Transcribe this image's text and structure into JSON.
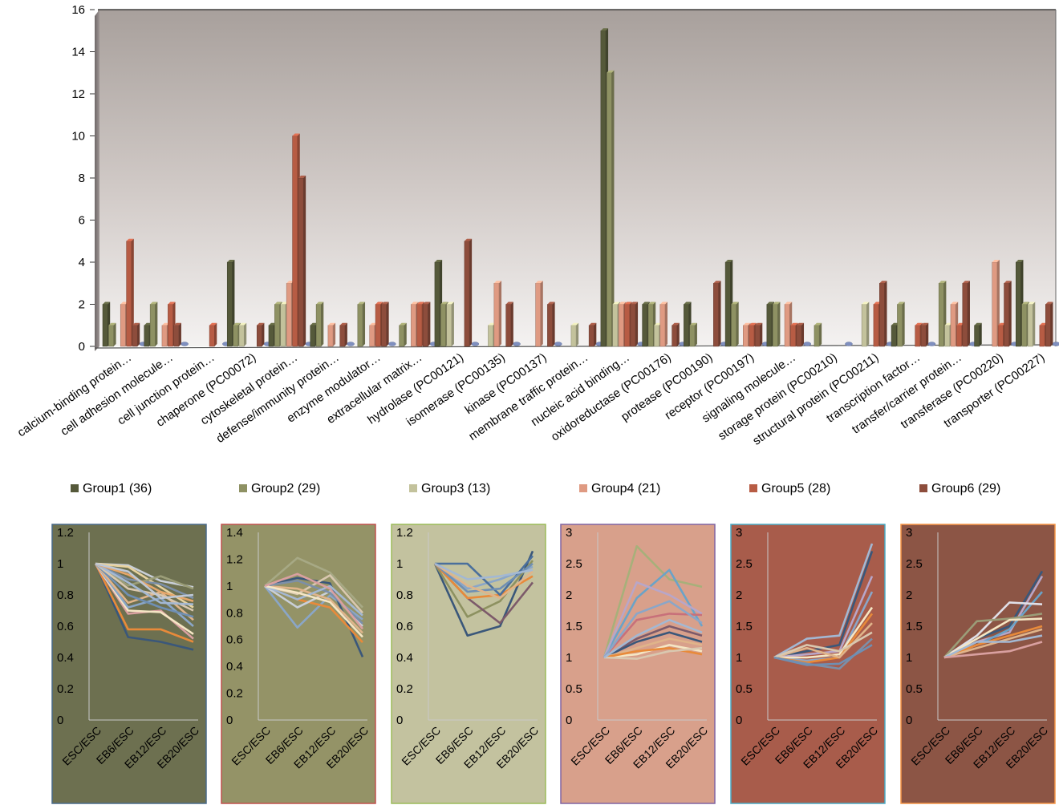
{
  "chart_data": [
    {
      "type": "bar",
      "title": "",
      "xlabel": "",
      "ylabel": "",
      "ylim": [
        0,
        16
      ],
      "yticks": [
        "0",
        "2",
        "4",
        "6",
        "8",
        "10",
        "12",
        "14",
        "16"
      ],
      "grid": false,
      "legend_position": "bottom",
      "categories": [
        "calcium-binding protein…",
        "cell adhesion molecule…",
        "cell junction protein…",
        "chaperone (PC00072)",
        "cytoskeletal protein…",
        "defense/immunity protein…",
        "enzyme modulator…",
        "extracellular matrix…",
        "hydrolase (PC00121)",
        "isomerase (PC00135)",
        "kinase (PC00137)",
        "membrane traffic protein…",
        "nucleic acid binding…",
        "oxidoreductase (PC00176)",
        "protease (PC00190)",
        "receptor (PC00197)",
        "signaling molecule…",
        "storage protein (PC00210)",
        "structural protein (PC00211)",
        "transcription factor…",
        "transfer/carrier protein…",
        "transferase (PC00220)",
        "transporter (PC00227)"
      ],
      "series": [
        {
          "name": "Group1 (36)",
          "color": "#55593a",
          "values": [
            2,
            1,
            0,
            4,
            1,
            1,
            0,
            0,
            4,
            0,
            0,
            0,
            15,
            2,
            2,
            4,
            2,
            0,
            0,
            1,
            0,
            1,
            4
          ]
        },
        {
          "name": "Group2 (29)",
          "color": "#8e9163",
          "values": [
            1,
            2,
            0,
            1,
            2,
            2,
            2,
            1,
            2,
            0,
            0,
            0,
            13,
            2,
            1,
            2,
            2,
            1,
            0,
            2,
            3,
            0,
            2
          ]
        },
        {
          "name": "Group3 (13)",
          "color": "#c3c29c",
          "values": [
            0,
            0,
            0,
            1,
            2,
            0,
            0,
            0,
            2,
            1,
            0,
            1,
            2,
            1,
            0,
            0,
            0,
            0,
            2,
            0,
            1,
            0,
            2
          ]
        },
        {
          "name": "Group4 (21)",
          "color": "#df9a82",
          "values": [
            2,
            1,
            0,
            0,
            3,
            1,
            1,
            2,
            0,
            3,
            3,
            0,
            2,
            2,
            0,
            1,
            2,
            0,
            0,
            0,
            2,
            4,
            0
          ]
        },
        {
          "name": "Group5 (28)",
          "color": "#b75c44",
          "values": [
            5,
            2,
            1,
            0,
            10,
            0,
            2,
            2,
            0,
            0,
            0,
            0,
            2,
            0,
            0,
            1,
            1,
            0,
            2,
            1,
            1,
            1,
            1
          ]
        },
        {
          "name": "Group6 (29)",
          "color": "#8d4d3c",
          "values": [
            1,
            1,
            0,
            1,
            8,
            1,
            2,
            2,
            5,
            2,
            2,
            1,
            2,
            1,
            3,
            1,
            1,
            0,
            3,
            1,
            3,
            3,
            2
          ]
        }
      ]
    },
    {
      "type": "line",
      "group": "Group1 (36)",
      "background": "#6d7050",
      "border": "#4a6b8a",
      "categories": [
        "ESC/ESC",
        "EB6/ESC",
        "EB12/ESC",
        "EB20/ESC"
      ],
      "ylim": [
        0,
        1.2
      ],
      "yticks": [
        "0",
        "0.2",
        "0.4",
        "0.6",
        "0.8",
        "1",
        "1.2"
      ],
      "series": [
        {
          "color": "#c9cfd8",
          "values": [
            1,
            0.99,
            0.89,
            0.85
          ]
        },
        {
          "color": "#e8d3a0",
          "values": [
            1,
            0.98,
            0.85,
            0.72
          ]
        },
        {
          "color": "#7c8fa8",
          "values": [
            1,
            0.9,
            0.87,
            0.78
          ]
        },
        {
          "color": "#9b9d78",
          "values": [
            1,
            0.86,
            0.92,
            0.84
          ]
        },
        {
          "color": "#3a577a",
          "values": [
            1,
            0.53,
            0.5,
            0.45
          ]
        },
        {
          "color": "#e88a3a",
          "values": [
            1,
            0.58,
            0.58,
            0.5
          ]
        },
        {
          "color": "#d9a0a0",
          "values": [
            1,
            0.68,
            0.7,
            0.52
          ]
        },
        {
          "color": "#f5e6c4",
          "values": [
            1,
            0.7,
            0.69,
            0.55
          ]
        },
        {
          "color": "#8aa6c8",
          "values": [
            1,
            0.72,
            0.78,
            0.6
          ]
        },
        {
          "color": "#e0b48a",
          "values": [
            1,
            0.75,
            0.82,
            0.64
          ]
        },
        {
          "color": "#6f8fb3",
          "values": [
            1,
            0.8,
            0.72,
            0.66
          ]
        },
        {
          "color": "#d9c8b0",
          "values": [
            1,
            0.84,
            0.8,
            0.7
          ]
        },
        {
          "color": "#a3b8d3",
          "values": [
            1,
            0.88,
            0.75,
            0.74
          ]
        },
        {
          "color": "#e6a66a",
          "values": [
            1,
            0.93,
            0.82,
            0.76
          ]
        },
        {
          "color": "#bfc8d6",
          "values": [
            1,
            0.95,
            0.78,
            0.8
          ]
        }
      ]
    },
    {
      "type": "line",
      "group": "Group2 (29)",
      "background": "#949367",
      "border": "#c0504d",
      "categories": [
        "ESC/ESC",
        "EB6/ESC",
        "EB12/ESC",
        "EB20/ESC"
      ],
      "ylim": [
        0,
        1.4
      ],
      "yticks": [
        "0",
        "0.2",
        "0.4",
        "0.6",
        "0.8",
        "1",
        "1.2",
        "1.4"
      ],
      "series": [
        {
          "color": "#a7a985",
          "values": [
            1,
            1.21,
            1.1,
            0.84
          ]
        },
        {
          "color": "#8aa6c8",
          "values": [
            1,
            0.69,
            0.93,
            0.75
          ]
        },
        {
          "color": "#3a577a",
          "values": [
            1,
            1.06,
            1.02,
            0.47
          ]
        },
        {
          "color": "#e88a3a",
          "values": [
            1,
            0.9,
            0.84,
            0.58
          ]
        },
        {
          "color": "#d9c8b0",
          "values": [
            1,
            0.94,
            1.08,
            0.8
          ]
        },
        {
          "color": "#c9cfd8",
          "values": [
            1,
            0.84,
            0.96,
            0.7
          ]
        },
        {
          "color": "#e0b48a",
          "values": [
            1,
            0.98,
            0.9,
            0.65
          ]
        },
        {
          "color": "#7c8fa8",
          "values": [
            1,
            1.04,
            0.95,
            0.72
          ]
        },
        {
          "color": "#a3b8d3",
          "values": [
            1,
            0.9,
            1.0,
            0.78
          ]
        },
        {
          "color": "#f5e6c4",
          "values": [
            1,
            0.95,
            0.88,
            0.62
          ]
        },
        {
          "color": "#d9a0a0",
          "values": [
            1,
            1.09,
            0.98,
            0.68
          ]
        }
      ]
    },
    {
      "type": "line",
      "group": "Group3 (13)",
      "background": "#c3c29f",
      "border": "#9bbb59",
      "categories": [
        "ESC/ESC",
        "EB6/ESC",
        "EB12/ESC",
        "EB20/ESC"
      ],
      "ylim": [
        0,
        1.2
      ],
      "yticks": [
        "0",
        "0.2",
        "0.4",
        "0.6",
        "0.8",
        "1",
        "1.2"
      ],
      "series": [
        {
          "color": "#3a577a",
          "values": [
            1,
            0.54,
            0.6,
            1.08
          ]
        },
        {
          "color": "#8d9160",
          "values": [
            1,
            0.66,
            0.76,
            1.02
          ]
        },
        {
          "color": "#7c5a6a",
          "values": [
            1,
            0.78,
            0.62,
            0.88
          ]
        },
        {
          "color": "#e88a3a",
          "values": [
            1,
            0.78,
            0.8,
            0.92
          ]
        },
        {
          "color": "#8aa6c8",
          "values": [
            1,
            0.84,
            0.9,
            0.98
          ]
        },
        {
          "color": "#4a6f9c",
          "values": [
            1,
            1.0,
            0.8,
            1.05
          ]
        },
        {
          "color": "#6f8fb3",
          "values": [
            1,
            0.82,
            0.84,
            1.0
          ]
        },
        {
          "color": "#e0b48a",
          "values": [
            1,
            0.86,
            0.78,
            0.95
          ]
        },
        {
          "color": "#a3b8d3",
          "values": [
            1,
            0.9,
            0.92,
            0.96
          ]
        }
      ]
    },
    {
      "type": "line",
      "group": "Group4 (21)",
      "background": "#d8a08b",
      "border": "#8064a2",
      "categories": [
        "ESC/ESC",
        "EB6/ESC",
        "EB12/ESC",
        "EB20/ESC"
      ],
      "ylim": [
        0,
        3
      ],
      "yticks": [
        "0",
        "0.5",
        "1",
        "1.5",
        "2",
        "2.5",
        "3"
      ],
      "series": [
        {
          "color": "#a7b07a",
          "values": [
            1,
            2.78,
            2.25,
            2.13
          ]
        },
        {
          "color": "#6aa3c8",
          "values": [
            1,
            1.95,
            2.4,
            1.5
          ]
        },
        {
          "color": "#b8a6c8",
          "values": [
            1,
            2.2,
            2.0,
            1.7
          ]
        },
        {
          "color": "#c8707a",
          "values": [
            1,
            1.6,
            1.7,
            1.68
          ]
        },
        {
          "color": "#8aa6c8",
          "values": [
            1,
            1.7,
            1.9,
            1.55
          ]
        },
        {
          "color": "#7c5a6a",
          "values": [
            1,
            1.3,
            1.5,
            1.35
          ]
        },
        {
          "color": "#3a577a",
          "values": [
            1,
            1.25,
            1.4,
            1.25
          ]
        },
        {
          "color": "#e0b48a",
          "values": [
            1,
            1.15,
            1.3,
            1.2
          ]
        },
        {
          "color": "#f5e6c4",
          "values": [
            1,
            1.05,
            1.2,
            1.1
          ]
        },
        {
          "color": "#e88a3a",
          "values": [
            1,
            1.1,
            1.15,
            1.05
          ]
        },
        {
          "color": "#d9c8b0",
          "values": [
            1,
            0.98,
            1.1,
            1.15
          ]
        },
        {
          "color": "#a3b8d3",
          "values": [
            1,
            1.35,
            1.6,
            1.4
          ]
        }
      ]
    },
    {
      "type": "line",
      "group": "Group5 (28)",
      "background": "#a85c4b",
      "border": "#4bacc6",
      "categories": [
        "ESC/ESC",
        "EB6/ESC",
        "EB12/ESC",
        "EB20/ESC"
      ],
      "ylim": [
        0,
        3
      ],
      "yticks": [
        "0",
        "0.5",
        "1",
        "1.5",
        "2",
        "2.5",
        "3"
      ],
      "series": [
        {
          "color": "#a3b8d3",
          "values": [
            1,
            1.3,
            1.35,
            2.82
          ]
        },
        {
          "color": "#3a577a",
          "values": [
            1,
            1.1,
            1.2,
            2.7
          ]
        },
        {
          "color": "#b8a6c8",
          "values": [
            1,
            1.05,
            1.1,
            2.3
          ]
        },
        {
          "color": "#8aa6c8",
          "values": [
            1,
            0.95,
            1.0,
            2.05
          ]
        },
        {
          "color": "#f5e6c4",
          "values": [
            1,
            1.0,
            1.05,
            1.8
          ]
        },
        {
          "color": "#e88a3a",
          "values": [
            1,
            0.92,
            1.0,
            1.7
          ]
        },
        {
          "color": "#e0b48a",
          "values": [
            1,
            1.15,
            1.0,
            1.55
          ]
        },
        {
          "color": "#7c8fa8",
          "values": [
            1,
            0.9,
            0.82,
            1.3
          ]
        },
        {
          "color": "#d9c8b0",
          "values": [
            1,
            1.2,
            1.1,
            1.4
          ]
        },
        {
          "color": "#6f8fb3",
          "values": [
            1,
            0.88,
            0.9,
            1.2
          ]
        }
      ]
    },
    {
      "type": "line",
      "group": "Group6 (29)",
      "background": "#8c5545",
      "border": "#f79646",
      "categories": [
        "ESC/ESC",
        "EB6/ESC",
        "EB12/ESC",
        "EB20/ESC"
      ],
      "ylim": [
        0,
        3
      ],
      "yticks": [
        "0",
        "0.5",
        "1",
        "1.5",
        "2",
        "2.5",
        "3"
      ],
      "series": [
        {
          "color": "#3a577a",
          "values": [
            1,
            1.3,
            1.5,
            2.38
          ]
        },
        {
          "color": "#b8a6c8",
          "values": [
            1,
            1.25,
            1.4,
            2.3
          ]
        },
        {
          "color": "#6aa3c8",
          "values": [
            1,
            1.2,
            1.45,
            2.05
          ]
        },
        {
          "color": "#e0e0e8",
          "values": [
            1,
            1.35,
            1.88,
            1.85
          ]
        },
        {
          "color": "#9b9d78",
          "values": [
            1,
            1.58,
            1.62,
            1.7
          ]
        },
        {
          "color": "#f5e6c4",
          "values": [
            1,
            1.3,
            1.6,
            1.62
          ]
        },
        {
          "color": "#e88a3a",
          "values": [
            1,
            1.2,
            1.35,
            1.5
          ]
        },
        {
          "color": "#e0b48a",
          "values": [
            1,
            1.15,
            1.3,
            1.45
          ]
        },
        {
          "color": "#a3b8d3",
          "values": [
            1,
            1.25,
            1.25,
            1.35
          ]
        },
        {
          "color": "#d9a0a0",
          "values": [
            1,
            1.05,
            1.1,
            1.25
          ]
        }
      ]
    }
  ]
}
